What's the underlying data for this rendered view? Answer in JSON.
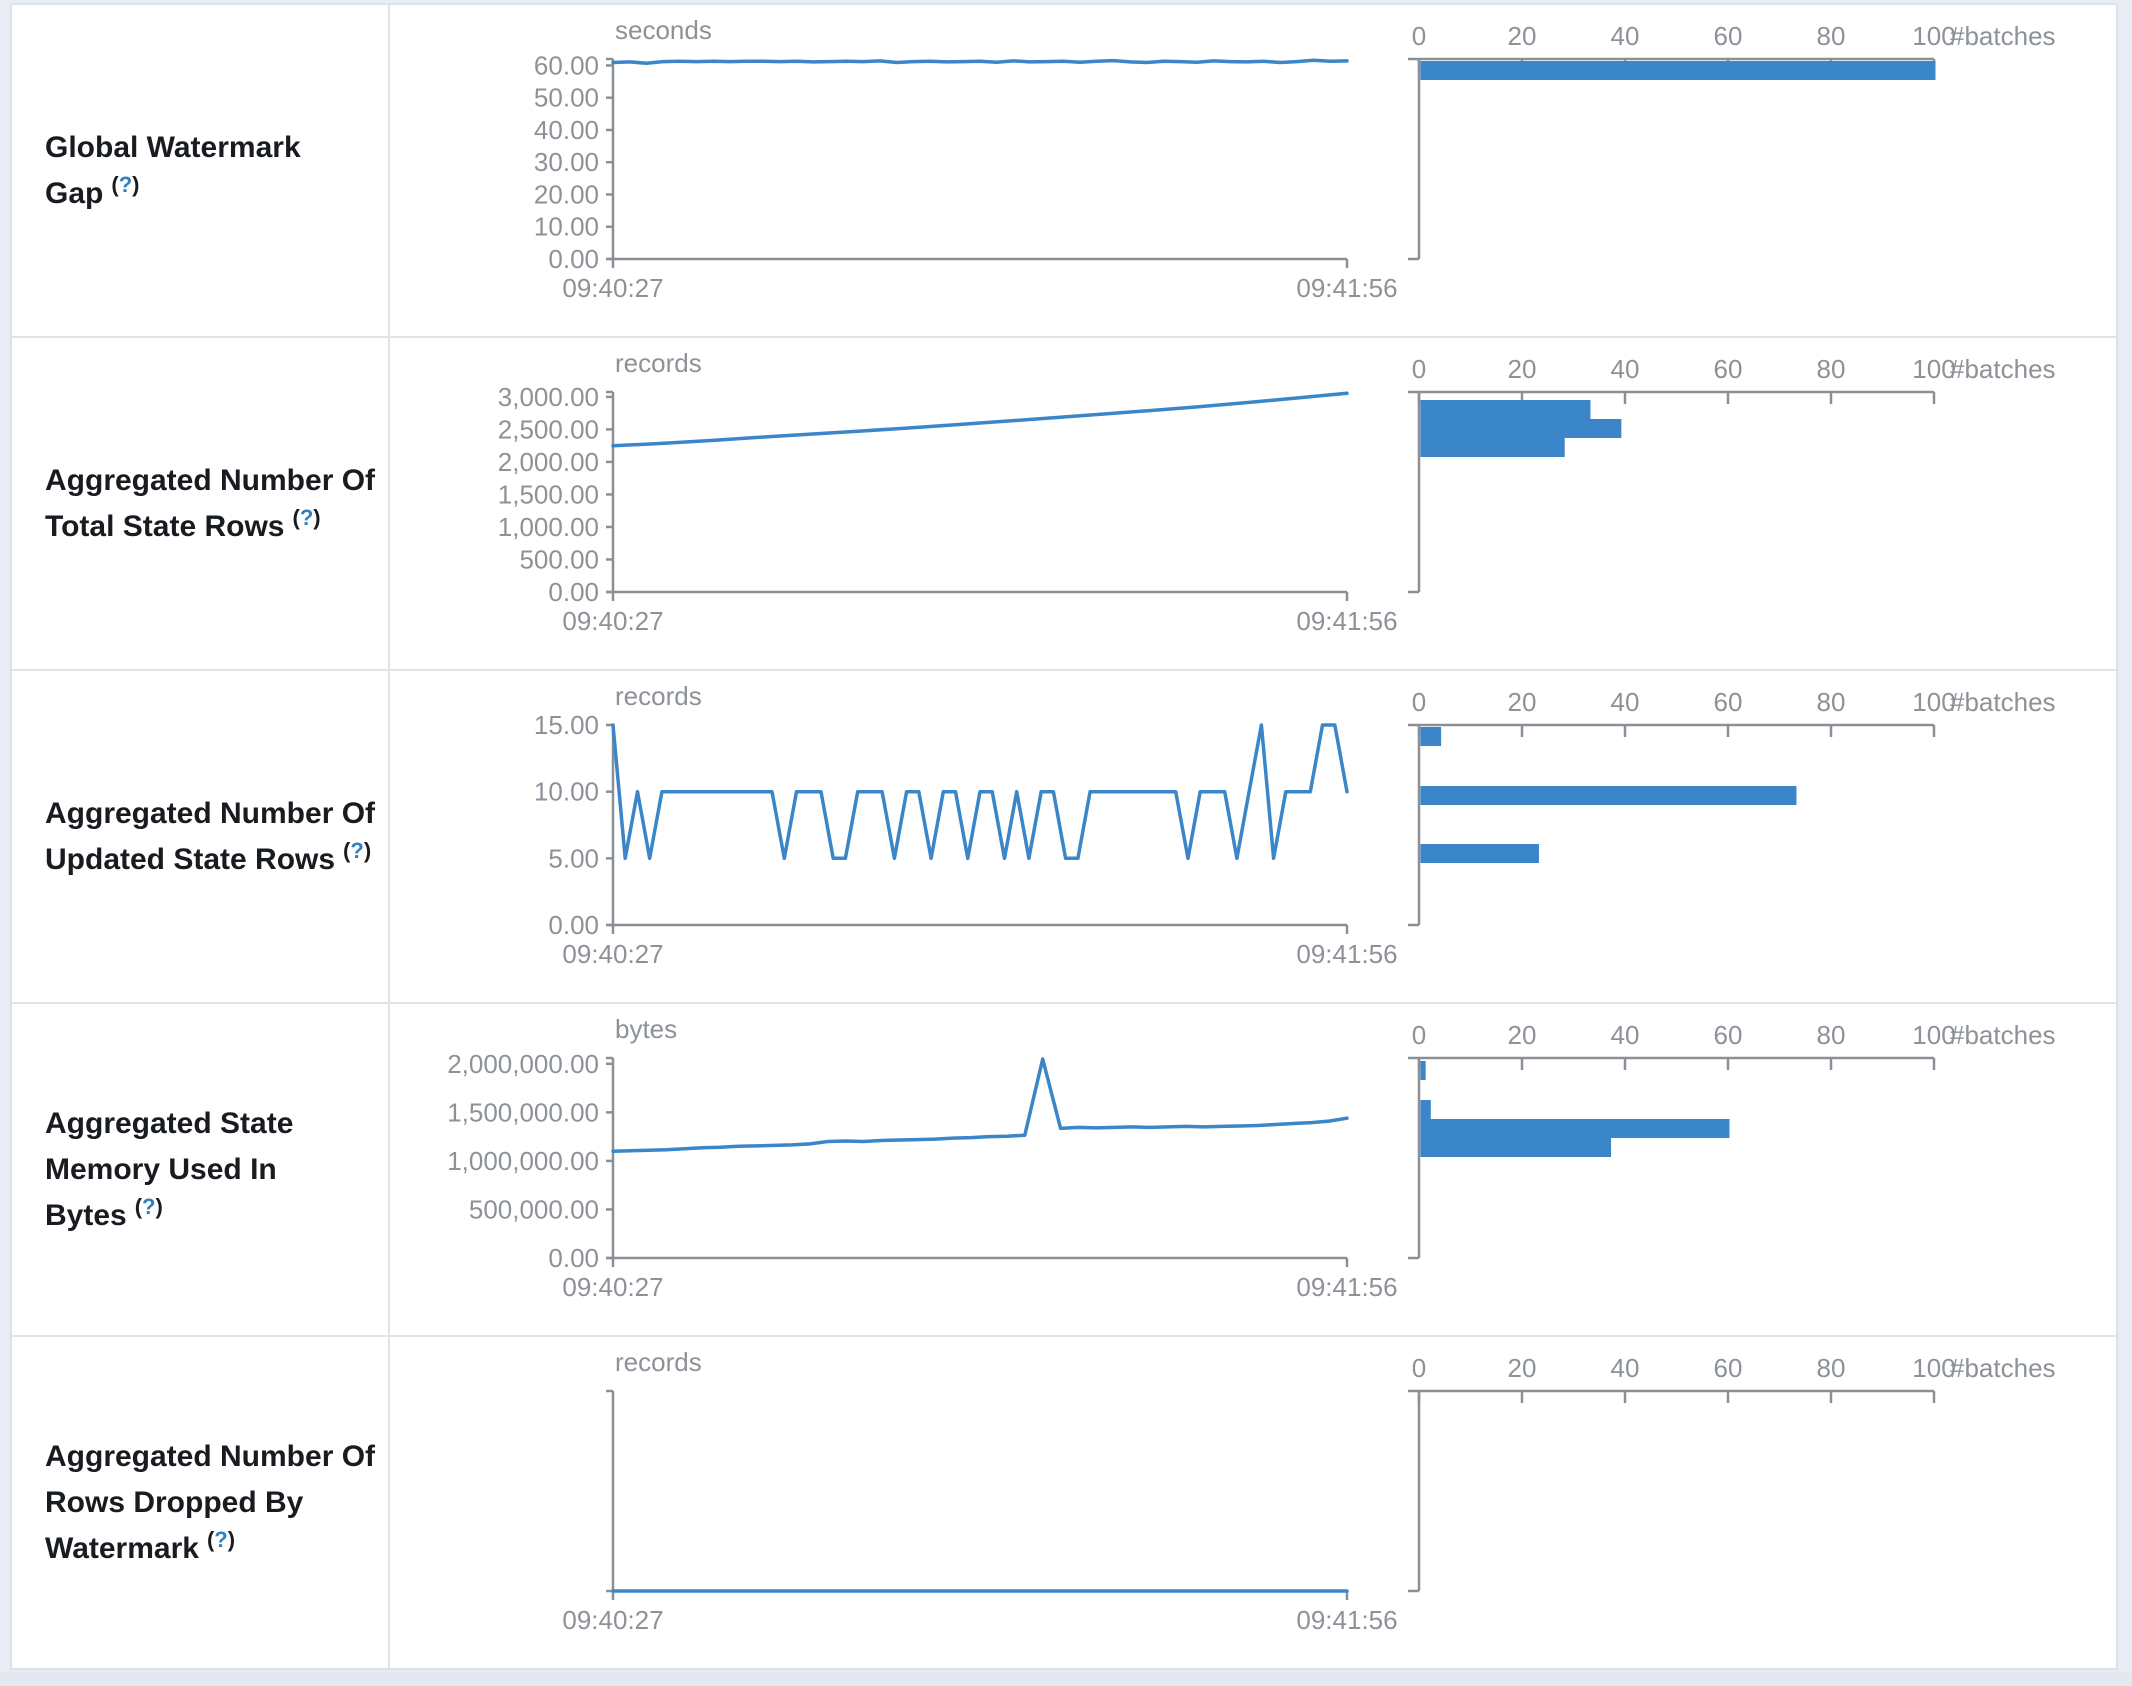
{
  "help": {
    "open": "(",
    "q": "?",
    "close": ")"
  },
  "colors": {
    "accent": "#3a86c8",
    "axis": "#8a9096",
    "tick_text": "#8d9298",
    "label_text": "#181b20",
    "help_link": "#2f7fc1",
    "border": "#dee4ea"
  },
  "histogram_axis": {
    "ticks": [
      0,
      20,
      40,
      60,
      80,
      100
    ],
    "unit": "#batches"
  },
  "time_axis": {
    "start": "09:40:27",
    "end": "09:41:56"
  },
  "rows": [
    {
      "name": "Global Watermark Gap",
      "timeline": {
        "unit": "seconds",
        "domain_max": 62,
        "yticks": [
          {
            "v": 60,
            "label": "60.00"
          },
          {
            "v": 50,
            "label": "50.00"
          },
          {
            "v": 40,
            "label": "40.00"
          },
          {
            "v": 30,
            "label": "30.00"
          },
          {
            "v": 20,
            "label": "20.00"
          },
          {
            "v": 10,
            "label": "10.00"
          },
          {
            "v": 0,
            "label": "0.00"
          }
        ],
        "values": [
          60.9,
          61.1,
          60.7,
          61.2,
          61.3,
          61.2,
          61.3,
          61.2,
          61.3,
          61.3,
          61.2,
          61.3,
          61.1,
          61.2,
          61.3,
          61.2,
          61.4,
          60.9,
          61.2,
          61.3,
          61.1,
          61.2,
          61.3,
          61.0,
          61.4,
          61.1,
          61.2,
          61.3,
          61.0,
          61.3,
          61.5,
          61.1,
          60.9,
          61.3,
          61.2,
          61.0,
          61.4,
          61.2,
          61.1,
          61.3,
          60.9,
          61.2,
          61.6,
          61.3,
          61.4
        ]
      },
      "histogram": {
        "bars": [
          {
            "count": 100,
            "y": 56
          }
        ]
      }
    },
    {
      "name": "Aggregated Number Of Total State Rows",
      "timeline": {
        "unit": "records",
        "domain_max": 3075,
        "yticks": [
          {
            "v": 3000,
            "label": "3,000.00"
          },
          {
            "v": 2500,
            "label": "2,500.00"
          },
          {
            "v": 2000,
            "label": "2,000.00"
          },
          {
            "v": 1500,
            "label": "1,500.00"
          },
          {
            "v": 1000,
            "label": "1,000.00"
          },
          {
            "v": 500,
            "label": "500.00"
          },
          {
            "v": 0,
            "label": "0.00"
          }
        ],
        "values": [
          2248,
          2285,
          2330,
          2378,
          2425,
          2470,
          2520,
          2570,
          2625,
          2680,
          2735,
          2790,
          2850,
          2915,
          2985,
          3055
        ]
      },
      "histogram": {
        "bars": [
          {
            "count": 33,
            "y": 62
          },
          {
            "count": 39,
            "y": 81
          },
          {
            "count": 28,
            "y": 100
          }
        ]
      }
    },
    {
      "name": "Aggregated Number Of Updated State Rows",
      "timeline": {
        "unit": "records",
        "domain_max": 15,
        "yticks": [
          {
            "v": 15,
            "label": "15.00"
          },
          {
            "v": 10,
            "label": "10.00"
          },
          {
            "v": 5,
            "label": "5.00"
          },
          {
            "v": 0,
            "label": "0.00"
          }
        ],
        "values": [
          15,
          5,
          10,
          5,
          10,
          10,
          10,
          10,
          10,
          10,
          10,
          10,
          10,
          10,
          5,
          10,
          10,
          10,
          5,
          5,
          10,
          10,
          10,
          5,
          10,
          10,
          5,
          10,
          10,
          5,
          10,
          10,
          5,
          10,
          5,
          10,
          10,
          5,
          5,
          10,
          10,
          10,
          10,
          10,
          10,
          10,
          10,
          5,
          10,
          10,
          10,
          5,
          10,
          15,
          5,
          10,
          10,
          10,
          15,
          15,
          10
        ]
      },
      "histogram": {
        "bars": [
          {
            "count": 4,
            "y": 56
          },
          {
            "count": 73,
            "y": 115
          },
          {
            "count": 23,
            "y": 173
          }
        ]
      }
    },
    {
      "name": "Aggregated State Memory Used In Bytes",
      "timeline": {
        "unit": "bytes",
        "domain_max": 2060000,
        "yticks": [
          {
            "v": 2000000,
            "label": "2,000,000.00"
          },
          {
            "v": 1500000,
            "label": "1,500,000.00"
          },
          {
            "v": 1000000,
            "label": "1,000,000.00"
          },
          {
            "v": 500000,
            "label": "500,000.00"
          },
          {
            "v": 0,
            "label": "0.00"
          }
        ],
        "values": [
          1100000,
          1105000,
          1110000,
          1115000,
          1125000,
          1135000,
          1140000,
          1150000,
          1155000,
          1160000,
          1165000,
          1175000,
          1200000,
          1205000,
          1200000,
          1210000,
          1215000,
          1220000,
          1225000,
          1235000,
          1240000,
          1250000,
          1255000,
          1265000,
          2050000,
          1335000,
          1345000,
          1340000,
          1345000,
          1350000,
          1345000,
          1350000,
          1355000,
          1350000,
          1355000,
          1360000,
          1365000,
          1375000,
          1385000,
          1395000,
          1410000,
          1440000
        ]
      },
      "histogram": {
        "bars": [
          {
            "count": 1,
            "y": 57
          },
          {
            "count": 2,
            "y": 96
          },
          {
            "count": 60,
            "y": 115
          },
          {
            "count": 37,
            "y": 134
          }
        ]
      }
    },
    {
      "name": "Aggregated Number Of Rows Dropped By Watermark",
      "timeline": {
        "unit": "records",
        "domain_max": 1,
        "yticks": [],
        "values": [
          0,
          0
        ]
      },
      "histogram": {
        "bars": []
      }
    }
  ]
}
